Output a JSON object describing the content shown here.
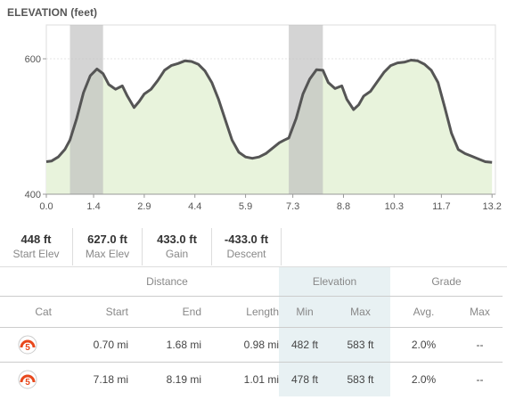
{
  "chart_data": {
    "type": "area",
    "title": "ELEVATION (feet)",
    "xlabel": "",
    "ylabel": "",
    "xlim": [
      0,
      13.3
    ],
    "ylim": [
      400,
      650
    ],
    "x_ticks": [
      "0.0",
      "1.4",
      "2.9",
      "4.4",
      "5.9",
      "7.3",
      "8.8",
      "10.3",
      "11.7",
      "13.2"
    ],
    "y_ticks": [
      "400",
      "600"
    ],
    "highlight_ranges": [
      [
        0.7,
        1.68
      ],
      [
        7.18,
        8.19
      ]
    ],
    "x": [
      0.0,
      0.15,
      0.35,
      0.55,
      0.7,
      0.9,
      1.1,
      1.3,
      1.5,
      1.68,
      1.85,
      2.05,
      2.25,
      2.4,
      2.6,
      2.75,
      2.9,
      3.1,
      3.3,
      3.5,
      3.7,
      3.9,
      4.1,
      4.3,
      4.5,
      4.7,
      4.9,
      5.1,
      5.3,
      5.5,
      5.7,
      5.9,
      6.1,
      6.3,
      6.5,
      6.7,
      6.9,
      7.05,
      7.18,
      7.4,
      7.6,
      7.8,
      8.0,
      8.19,
      8.35,
      8.55,
      8.75,
      8.9,
      9.1,
      9.25,
      9.4,
      9.6,
      9.8,
      10.0,
      10.2,
      10.4,
      10.6,
      10.8,
      11.0,
      11.2,
      11.4,
      11.6,
      11.8,
      12.0,
      12.2,
      12.4,
      12.6,
      12.8,
      13.0,
      13.2
    ],
    "y": [
      448,
      449,
      455,
      466,
      480,
      512,
      550,
      575,
      585,
      578,
      562,
      555,
      560,
      545,
      528,
      537,
      548,
      555,
      568,
      583,
      590,
      593,
      597,
      596,
      592,
      582,
      565,
      540,
      510,
      480,
      462,
      455,
      453,
      455,
      460,
      468,
      476,
      480,
      483,
      512,
      548,
      570,
      584,
      583,
      565,
      556,
      560,
      540,
      525,
      532,
      545,
      552,
      566,
      580,
      590,
      594,
      595,
      598,
      597,
      592,
      583,
      565,
      528,
      490,
      466,
      460,
      456,
      452,
      448,
      447
    ]
  },
  "stats": [
    {
      "value": "448 ft",
      "label": "Start Elev"
    },
    {
      "value": "627.0 ft",
      "label": "Max Elev"
    },
    {
      "value": "433.0 ft",
      "label": "Gain"
    },
    {
      "value": "-433.0 ft",
      "label": "Descent"
    }
  ],
  "table": {
    "group_headers": {
      "distance": "Distance",
      "elevation": "Elevation",
      "grade": "Grade"
    },
    "headers": {
      "cat": "Cat",
      "start": "Start",
      "end": "End",
      "length": "Length",
      "min": "Min",
      "max": "Max",
      "avg": "Avg.",
      "grade_max": "Max"
    },
    "rows": [
      {
        "cat": "5",
        "start": "0.70 mi",
        "end": "1.68 mi",
        "length": "0.98 mi",
        "min": "482 ft",
        "max": "583 ft",
        "avg": "2.0%",
        "grade_max": "--"
      },
      {
        "cat": "5",
        "start": "7.18 mi",
        "end": "8.19 mi",
        "length": "1.01 mi",
        "min": "478 ft",
        "max": "583 ft",
        "avg": "2.0%",
        "grade_max": "--"
      }
    ]
  },
  "colors": {
    "area_fill": "#e8f3dc",
    "line": "#555555",
    "highlight": "#bdbdbd",
    "elevation_column": "#e8f1f3",
    "cat_badge": "#e8481c"
  }
}
